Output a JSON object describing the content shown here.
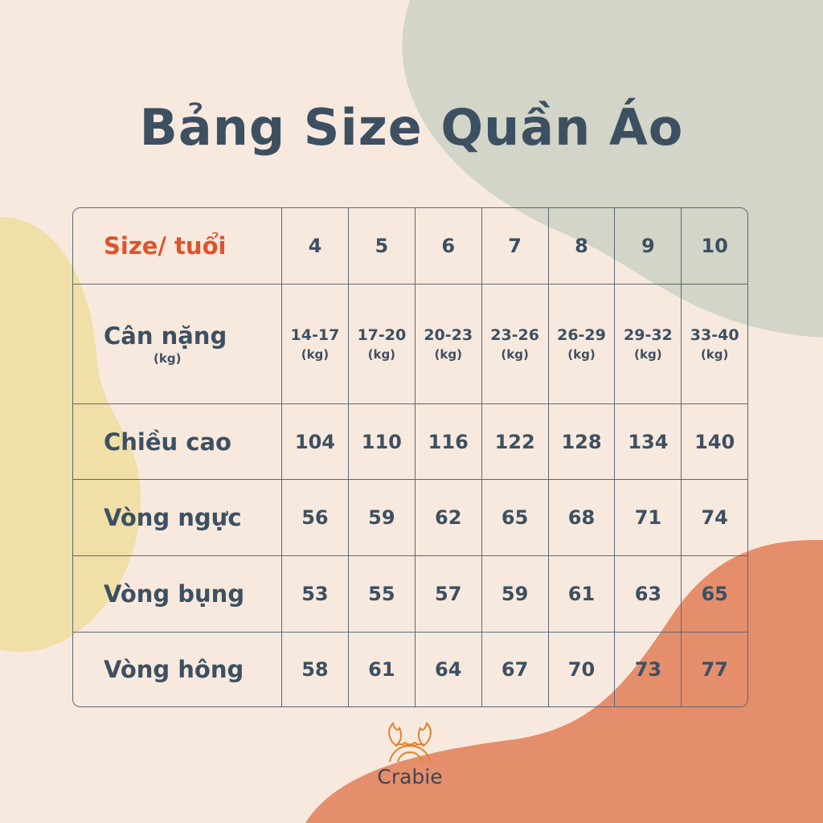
{
  "title": "Bảng Size Quần Áo",
  "colors": {
    "background": "#f8e9de",
    "green_blob": "#d2d5c7",
    "yellow_blob": "#f0dfa6",
    "orange_blob": "#e58e6c",
    "text": "#3d5062",
    "accent": "#e0522b"
  },
  "table": {
    "header": {
      "label": "Size/ tuổi",
      "values": [
        "4",
        "5",
        "6",
        "7",
        "8",
        "9",
        "10"
      ]
    },
    "weight": {
      "label": "Cân nặng",
      "unit": "(kg)",
      "values": [
        "14-17",
        "17-20",
        "20-23",
        "23-26",
        "26-29",
        "29-32",
        "33-40"
      ],
      "value_unit": "(kg)"
    },
    "rows": [
      {
        "label": "Chiều cao",
        "values": [
          "104",
          "110",
          "116",
          "122",
          "128",
          "134",
          "140"
        ]
      },
      {
        "label": "Vòng ngực",
        "values": [
          "56",
          "59",
          "62",
          "65",
          "68",
          "71",
          "74"
        ]
      },
      {
        "label": "Vòng bụng",
        "values": [
          "53",
          "55",
          "57",
          "59",
          "61",
          "63",
          "65"
        ]
      },
      {
        "label": "Vòng hông",
        "values": [
          "58",
          "61",
          "64",
          "67",
          "70",
          "73",
          "77"
        ]
      }
    ]
  },
  "logo": {
    "name": "Crabie",
    "icon": "crab-icon"
  }
}
